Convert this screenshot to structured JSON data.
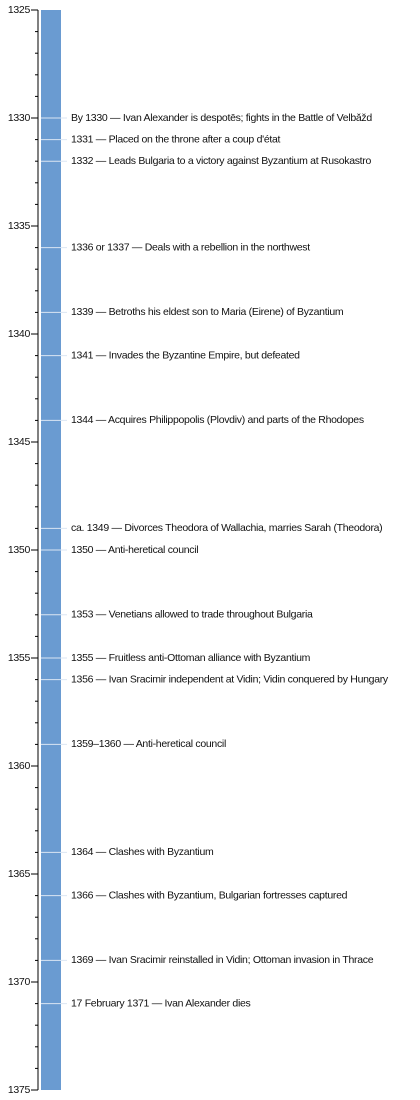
{
  "chart_data": {
    "type": "timeline",
    "color": "#6a9bd1",
    "ylim": [
      1325,
      1375
    ],
    "yticks": [
      1325,
      1330,
      1335,
      1340,
      1345,
      1350,
      1355,
      1360,
      1365,
      1370,
      1375
    ],
    "minor_yticks": [
      1325,
      1326,
      1327,
      1328,
      1329,
      1330,
      1331,
      1332,
      1333,
      1334,
      1335,
      1336,
      1337,
      1338,
      1339,
      1340,
      1341,
      1342,
      1343,
      1344,
      1345,
      1346,
      1347,
      1348,
      1349,
      1350,
      1351,
      1352,
      1353,
      1354,
      1355,
      1356,
      1357,
      1358,
      1359,
      1360,
      1361,
      1362,
      1363,
      1364,
      1365,
      1366,
      1367,
      1368,
      1369,
      1370,
      1371,
      1372,
      1373,
      1374,
      1375
    ],
    "events": [
      {
        "year": 1330,
        "label": "By 1330 — Ivan Alexander is despotēs; fights in the Battle of Velbǎžd"
      },
      {
        "year": 1331,
        "label": "1331 — Placed on the throne after a coup d'état"
      },
      {
        "year": 1332,
        "label": "1332 — Leads Bulgaria to a victory against Byzantium at Rusokastro"
      },
      {
        "year": 1336,
        "label": "1336 or 1337 — Deals with a rebellion in the northwest"
      },
      {
        "year": 1339,
        "label": "1339 — Betroths his eldest son to Maria (Eirene) of Byzantium"
      },
      {
        "year": 1341,
        "label": "1341 — Invades the Byzantine Empire, but defeated"
      },
      {
        "year": 1344,
        "label": "1344 — Acquires Philippopolis (Plovdiv) and parts of the Rhodopes"
      },
      {
        "year": 1349,
        "label": "ca. 1349 — Divorces Theodora of Wallachia, marries Sarah (Theodora)"
      },
      {
        "year": 1350,
        "label": "1350 — Anti-heretical council"
      },
      {
        "year": 1353,
        "label": "1353 — Venetians allowed to trade throughout Bulgaria"
      },
      {
        "year": 1355,
        "label": "1355 — Fruitless anti-Ottoman alliance with Byzantium"
      },
      {
        "year": 1356,
        "label": "1356 — Ivan Sracimir independent at Vidin; Vidin conquered by Hungary"
      },
      {
        "year": 1359,
        "label": "1359–1360 — Anti-heretical council"
      },
      {
        "year": 1364,
        "label": "1364 — Clashes with Byzantium"
      },
      {
        "year": 1366,
        "label": "1366 — Clashes with Byzantium, Bulgarian fortresses captured"
      },
      {
        "year": 1369,
        "label": "1369 — Ivan Sracimir reinstalled in Vidin; Ottoman invasion in Thrace"
      },
      {
        "year": 1371,
        "label": "17 February 1371 — Ivan Alexander dies"
      }
    ]
  }
}
